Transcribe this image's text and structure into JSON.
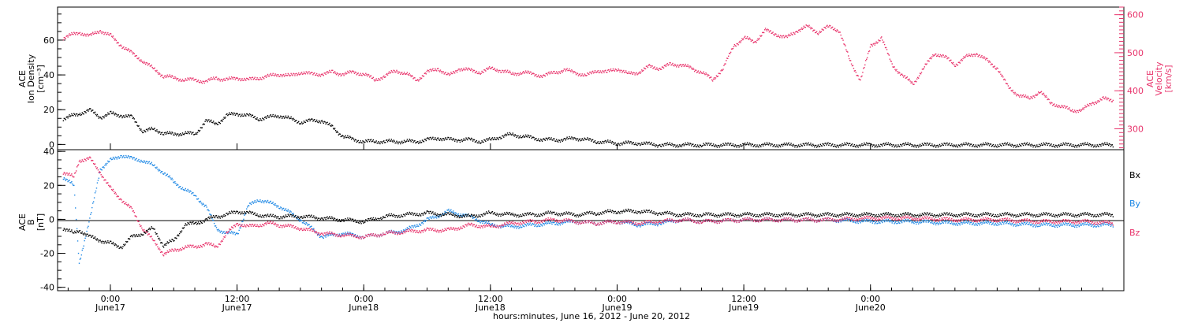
{
  "footer_label": "hours:minutes, June 16, 2012 - June 20, 2012",
  "x_ticks": [
    {
      "time": "0:00",
      "day": "June17"
    },
    {
      "time": "12:00",
      "day": "June17"
    },
    {
      "time": "0:00",
      "day": "June18"
    },
    {
      "time": "12:00",
      "day": "June18"
    },
    {
      "time": "0:00",
      "day": "June19"
    },
    {
      "time": "12:00",
      "day": "June19"
    },
    {
      "time": "0:00",
      "day": "June20"
    }
  ],
  "colors": {
    "black": "#000000",
    "pink": "#e8336b",
    "blue": "#1e88e5"
  },
  "chart_data": [
    {
      "type": "scatter",
      "panel": "top",
      "ylabel_left": [
        "ACE",
        "Ion Density",
        "[cm⁻³]"
      ],
      "ylabel_right": [
        "ACE",
        "Velocity",
        "[km/s]"
      ],
      "x_unit": "hours since June 16, 2012 0:00",
      "xlim": [
        19,
        120
      ],
      "ylim_left": [
        -3,
        79
      ],
      "ylim_right": [
        245,
        620
      ],
      "yticks_left": [
        0,
        20,
        40,
        60
      ],
      "yticks_right": [
        300,
        400,
        500,
        600
      ],
      "series": [
        {
          "name": "Ion Density",
          "axis": "left",
          "color": "#000000",
          "x": [
            19.5,
            21,
            22,
            23,
            24,
            25,
            26,
            27,
            28,
            29,
            30,
            31,
            32,
            33,
            34,
            35,
            36,
            37,
            38,
            39,
            40,
            41,
            42,
            43,
            44,
            45,
            46,
            47,
            48,
            49,
            50,
            51,
            52,
            53,
            54,
            55,
            56,
            57,
            58,
            59,
            60,
            61,
            62,
            63,
            64,
            65,
            66,
            67,
            68,
            69,
            70,
            72,
            74,
            76,
            78,
            80,
            84,
            88,
            92,
            96,
            100,
            104,
            108,
            112,
            116,
            119
          ],
          "y": [
            15,
            18,
            20,
            16,
            18,
            17,
            16,
            8,
            9,
            7,
            6,
            7,
            6,
            14,
            12,
            17,
            18,
            17,
            15,
            16,
            17,
            15,
            13,
            14,
            14,
            10,
            5,
            3,
            2,
            2,
            2,
            2,
            2,
            2,
            3,
            4,
            3,
            3,
            3,
            2,
            3,
            5,
            6,
            5,
            4,
            3,
            3,
            3,
            4,
            3,
            2,
            1,
            1,
            0,
            0,
            0,
            0,
            0,
            0,
            0,
            0,
            0,
            0,
            0,
            0,
            0
          ]
        },
        {
          "name": "Velocity",
          "axis": "right",
          "color": "#e8336b",
          "x": [
            19.5,
            21,
            22,
            23,
            24,
            25,
            26,
            27,
            28,
            29,
            30,
            31,
            32,
            33,
            34,
            35,
            36,
            37,
            38,
            39,
            40,
            41,
            42,
            43,
            44,
            45,
            46,
            47,
            48,
            49,
            50,
            51,
            52,
            53,
            54,
            55,
            56,
            57,
            58,
            59,
            60,
            61,
            62,
            63,
            64,
            65,
            66,
            67,
            68,
            69,
            70,
            71,
            72,
            73,
            74,
            75,
            76,
            77,
            78,
            79,
            80,
            81,
            82,
            83,
            84,
            85,
            86,
            87,
            88,
            89,
            90,
            91,
            92,
            93,
            94,
            95,
            96,
            97,
            98,
            99,
            100,
            101,
            102,
            103,
            104,
            105,
            106,
            107,
            108,
            109,
            110,
            111,
            112,
            113,
            114,
            115,
            116,
            117,
            118,
            119
          ],
          "y": [
            540,
            555,
            545,
            560,
            545,
            520,
            500,
            480,
            460,
            440,
            435,
            430,
            430,
            425,
            435,
            430,
            435,
            430,
            435,
            440,
            445,
            440,
            450,
            445,
            445,
            450,
            445,
            450,
            445,
            430,
            440,
            455,
            445,
            430,
            450,
            460,
            440,
            460,
            455,
            450,
            460,
            455,
            445,
            450,
            445,
            440,
            450,
            455,
            450,
            440,
            455,
            450,
            460,
            445,
            450,
            465,
            460,
            470,
            470,
            460,
            450,
            430,
            460,
            520,
            540,
            530,
            560,
            550,
            540,
            560,
            570,
            555,
            570,
            560,
            480,
            430,
            520,
            540,
            470,
            440,
            420,
            460,
            500,
            490,
            470,
            490,
            500,
            480,
            460,
            410,
            390,
            380,
            400,
            370,
            360,
            350,
            350,
            370,
            380,
            375
          ]
        }
      ]
    },
    {
      "type": "scatter",
      "panel": "bottom",
      "ylabel_left": [
        "ACE",
        "B",
        "[nT]"
      ],
      "x_unit": "hours since June 16, 2012 0:00",
      "xlim": [
        19,
        120
      ],
      "ylim": [
        -42,
        41
      ],
      "yticks": [
        -40,
        -20,
        0,
        20,
        40
      ],
      "zero_line": true,
      "legend": [
        "Bx",
        "By",
        "Bz"
      ],
      "legend_placement": "right",
      "series": [
        {
          "name": "Bx",
          "color": "#000000",
          "x": [
            19.5,
            20.5,
            21,
            22,
            23,
            24,
            25,
            26,
            27,
            28,
            29,
            30,
            31,
            32,
            33,
            34,
            35,
            36,
            37,
            38,
            39,
            40,
            42,
            44,
            46,
            48,
            50,
            52,
            54,
            56,
            58,
            60,
            62,
            64,
            66,
            68,
            70,
            72,
            74,
            76,
            78,
            80,
            84,
            88,
            92,
            96,
            100,
            104,
            108,
            112,
            116,
            119
          ],
          "y": [
            -5,
            -8,
            -6,
            -10,
            -12,
            -14,
            -16,
            -10,
            -8,
            -5,
            -15,
            -12,
            -3,
            -2,
            0,
            2,
            3,
            5,
            4,
            3,
            2,
            2,
            2,
            1,
            0,
            -1,
            2,
            3,
            4,
            3,
            2,
            4,
            3,
            3,
            4,
            3,
            4,
            5,
            5,
            4,
            3,
            3,
            3,
            3,
            3,
            3,
            3,
            3,
            3,
            3,
            3,
            3
          ]
        },
        {
          "name": "By",
          "color": "#1e88e5",
          "x": [
            19.5,
            20.5,
            21,
            22,
            23,
            24,
            25,
            26,
            27,
            28,
            29,
            30,
            31,
            32,
            33,
            34,
            35,
            36,
            37,
            38,
            39,
            40,
            42,
            44,
            46,
            48,
            50,
            52,
            54,
            56,
            58,
            60,
            62,
            64,
            66,
            68,
            70,
            72,
            74,
            76,
            78,
            80,
            84,
            88,
            92,
            96,
            100,
            104,
            108,
            112,
            116,
            119
          ],
          "y": [
            25,
            20,
            -25,
            0,
            30,
            35,
            38,
            36,
            35,
            32,
            28,
            22,
            18,
            14,
            8,
            -5,
            -8,
            -8,
            8,
            12,
            10,
            8,
            0,
            -10,
            -8,
            -10,
            -8,
            -6,
            0,
            5,
            2,
            -3,
            -4,
            -3,
            -2,
            -1,
            -2,
            -1,
            -3,
            -2,
            0,
            -1,
            0,
            0,
            0,
            -1,
            -1,
            -2,
            -2,
            -3,
            -3,
            -3
          ]
        },
        {
          "name": "Bz",
          "color": "#e8336b",
          "x": [
            19.5,
            20.5,
            21,
            22,
            23,
            24,
            25,
            26,
            27,
            28,
            29,
            30,
            31,
            32,
            33,
            34,
            35,
            36,
            37,
            38,
            39,
            40,
            42,
            44,
            46,
            48,
            50,
            52,
            54,
            56,
            58,
            60,
            62,
            64,
            66,
            68,
            70,
            72,
            74,
            76,
            78,
            80,
            84,
            88,
            92,
            96,
            100,
            104,
            108,
            112,
            116,
            119
          ],
          "y": [
            28,
            25,
            35,
            36,
            28,
            18,
            12,
            6,
            -5,
            -12,
            -20,
            -18,
            -16,
            -16,
            -14,
            -16,
            -8,
            -2,
            -4,
            -3,
            -2,
            -3,
            -5,
            -8,
            -9,
            -10,
            -8,
            -7,
            -6,
            -6,
            -3,
            -4,
            -2,
            -1,
            0,
            -1,
            -2,
            -1,
            -2,
            -1,
            0,
            -1,
            0,
            0,
            0,
            1,
            1,
            0,
            0,
            -1,
            -1,
            -2
          ]
        }
      ]
    }
  ]
}
